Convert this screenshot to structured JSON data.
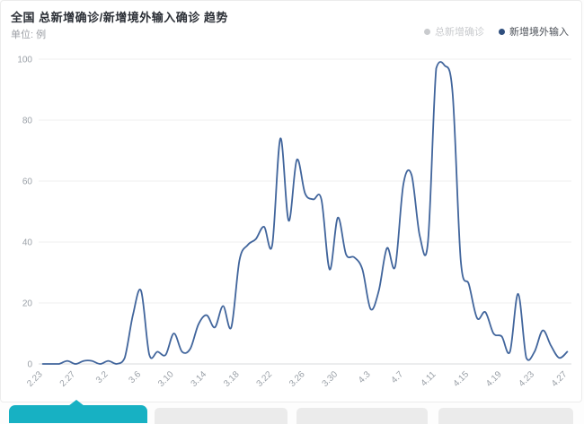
{
  "header": {
    "title": "全国 总新增确诊/新增境外输入确诊 趋势",
    "unit_label": "单位: 例"
  },
  "legend": [
    {
      "label": "总新增确诊",
      "color": "#c9cbce",
      "selected": false
    },
    {
      "label": "新增境外输入",
      "color": "#2f4f7e",
      "selected": true
    }
  ],
  "chart_data": {
    "type": "line",
    "smooth": true,
    "title": "全国 总新增确诊/新增境外输入确诊 趋势",
    "ylabel": "单位: 例",
    "xlabel": "",
    "ylim": [
      0,
      100
    ],
    "yticks": [
      0,
      20,
      40,
      60,
      80,
      100
    ],
    "grid": true,
    "legend_position": "top-right",
    "x": [
      "2.23",
      "2.24",
      "2.25",
      "2.26",
      "2.27",
      "2.28",
      "2.29",
      "3.1",
      "3.2",
      "3.3",
      "3.4",
      "3.5",
      "3.6",
      "3.7",
      "3.8",
      "3.9",
      "3.10",
      "3.11",
      "3.12",
      "3.13",
      "3.14",
      "3.15",
      "3.16",
      "3.17",
      "3.18",
      "3.19",
      "3.20",
      "3.21",
      "3.22",
      "3.23",
      "3.24",
      "3.25",
      "3.26",
      "3.27",
      "3.28",
      "3.29",
      "3.30",
      "3.31",
      "4.1",
      "4.2",
      "4.3",
      "4.4",
      "4.5",
      "4.6",
      "4.7",
      "4.8",
      "4.9",
      "4.10",
      "4.11",
      "4.12",
      "4.13",
      "4.14",
      "4.15",
      "4.16",
      "4.17",
      "4.18",
      "4.19",
      "4.20",
      "4.21",
      "4.22",
      "4.23",
      "4.24",
      "4.25",
      "4.26",
      "4.27"
    ],
    "xticks_shown": [
      "2.23",
      "2.27",
      "3.2",
      "3.6",
      "3.10",
      "3.14",
      "3.18",
      "3.22",
      "3.26",
      "3.30",
      "4.3",
      "4.7",
      "4.11",
      "4.15",
      "4.19",
      "4.23",
      "4.27"
    ],
    "xtick_label_interval": 4,
    "series": [
      {
        "name": "总新增确诊",
        "visible": false,
        "color": "#c9cbce",
        "values": []
      },
      {
        "name": "新增境外输入",
        "visible": true,
        "color": "#41659c",
        "values": [
          0,
          0,
          0,
          1,
          0,
          1,
          1,
          0,
          1,
          0,
          2,
          16,
          24,
          3,
          4,
          3,
          10,
          4,
          5,
          13,
          16,
          12,
          19,
          12,
          34,
          39,
          41,
          45,
          39,
          74,
          47,
          67,
          56,
          54,
          54,
          31,
          48,
          36,
          35,
          31,
          18,
          24,
          38,
          32,
          59,
          62,
          42,
          40,
          97,
          98,
          89,
          34,
          26,
          15,
          17,
          10,
          9,
          4,
          23,
          2,
          4,
          11,
          6,
          2,
          4
        ]
      }
    ]
  },
  "footer_tabs": {
    "active_index": 0,
    "active_color": "#17b1c3",
    "inactive_color": "#ebebeb",
    "tabs": [
      {
        "label": "",
        "active": true
      },
      {
        "label": "",
        "active": false
      },
      {
        "label": "",
        "active": false
      },
      {
        "label": "",
        "active": false
      }
    ]
  }
}
